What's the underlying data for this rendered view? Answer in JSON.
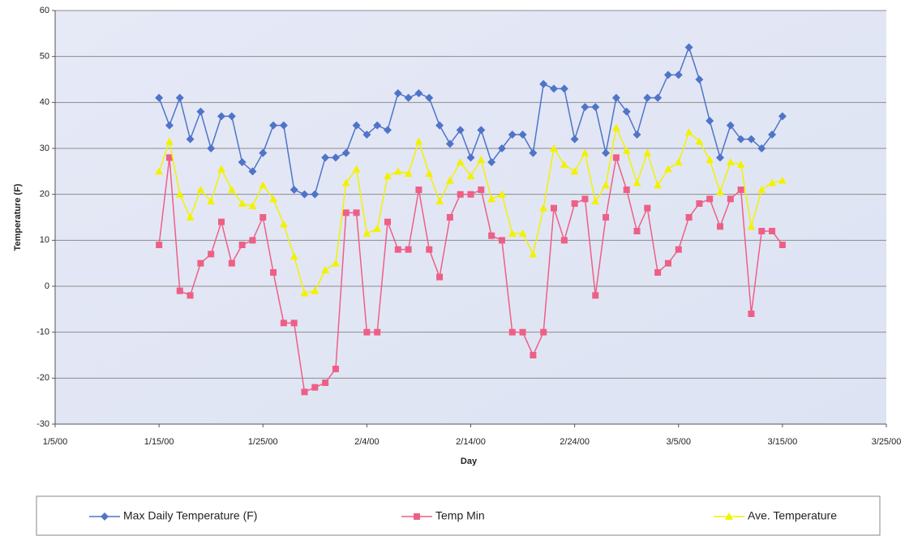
{
  "chart_data": {
    "type": "line",
    "x_label": "Day",
    "y_label": "Temperature (F)",
    "x": [
      "1/15/00",
      "1/16/00",
      "1/17/00",
      "1/18/00",
      "1/19/00",
      "1/20/00",
      "1/21/00",
      "1/22/00",
      "1/23/00",
      "1/24/00",
      "1/25/00",
      "1/26/00",
      "1/27/00",
      "1/28/00",
      "1/29/00",
      "1/30/00",
      "1/31/00",
      "2/1/00",
      "2/2/00",
      "2/3/00",
      "2/4/00",
      "2/5/00",
      "2/6/00",
      "2/7/00",
      "2/8/00",
      "2/9/00",
      "2/10/00",
      "2/11/00",
      "2/12/00",
      "2/13/00",
      "2/14/00",
      "2/15/00",
      "2/16/00",
      "2/17/00",
      "2/18/00",
      "2/19/00",
      "2/20/00",
      "2/21/00",
      "2/22/00",
      "2/23/00",
      "2/24/00",
      "2/25/00",
      "2/26/00",
      "2/27/00",
      "2/28/00",
      "2/29/00",
      "3/1/00",
      "3/2/00",
      "3/3/00",
      "3/4/00",
      "3/5/00",
      "3/6/00",
      "3/7/00",
      "3/8/00",
      "3/9/00",
      "3/10/00",
      "3/11/00",
      "3/12/00",
      "3/13/00",
      "3/14/00",
      "3/15/00"
    ],
    "series": [
      {
        "name": "Max Daily Temperature (F)",
        "color": "#4f74c8",
        "marker": "diamond",
        "values": [
          41,
          35,
          41,
          32,
          38,
          30,
          37,
          37,
          27,
          25,
          29,
          35,
          35,
          21,
          20,
          20,
          28,
          28,
          29,
          35,
          33,
          35,
          34,
          42,
          41,
          42,
          41,
          35,
          31,
          34,
          28,
          34,
          27,
          30,
          33,
          33,
          29,
          44,
          43,
          43,
          32,
          39,
          39,
          29,
          41,
          38,
          33,
          41,
          41,
          46,
          46,
          52,
          45,
          36,
          28,
          35,
          32,
          32,
          30,
          33,
          37
        ]
      },
      {
        "name": "Temp Min",
        "color": "#ee5f86",
        "marker": "square",
        "values": [
          9,
          28,
          -1,
          -2,
          5,
          7,
          14,
          5,
          9,
          10,
          15,
          3,
          -8,
          -8,
          -23,
          -22,
          -21,
          -18,
          16,
          16,
          -10,
          -10,
          14,
          8,
          8,
          21,
          8,
          2,
          15,
          20,
          20,
          21,
          11,
          10,
          -10,
          -10,
          -15,
          -10,
          17,
          10,
          18,
          19,
          -2,
          15,
          28,
          21,
          12,
          17,
          3,
          5,
          8,
          15,
          18,
          19,
          13,
          19,
          21,
          -6,
          12,
          12,
          9
        ]
      },
      {
        "name": "Ave. Temperature",
        "color": "#f2f200",
        "marker": "triangle",
        "values": [
          25,
          31.5,
          20,
          15,
          21,
          18.5,
          25.5,
          21,
          18,
          17.5,
          22,
          19,
          13.5,
          6.5,
          -1.5,
          -1,
          3.5,
          5,
          22.5,
          25.5,
          11.5,
          12.5,
          24,
          25,
          24.5,
          31.5,
          24.5,
          18.5,
          23,
          27,
          24,
          27.5,
          19,
          20,
          11.5,
          11.5,
          7,
          17,
          30,
          26.5,
          25,
          29,
          18.5,
          22,
          34.5,
          29.5,
          22.5,
          29,
          22,
          25.5,
          27,
          33.5,
          31.5,
          27.5,
          20.5,
          27,
          26.5,
          13,
          21,
          22.5,
          23
        ]
      }
    ],
    "xlim": [
      "1/5/00",
      "3/25/00"
    ],
    "xticks": [
      "1/5/00",
      "1/15/00",
      "1/25/00",
      "2/4/00",
      "2/14/00",
      "2/24/00",
      "3/5/00",
      "3/15/00",
      "3/25/00"
    ],
    "ylim": [
      -30,
      60
    ],
    "yticks": [
      -30,
      -20,
      -10,
      0,
      10,
      20,
      30,
      40,
      50,
      60
    ],
    "grid": true,
    "legend": "bottom"
  }
}
